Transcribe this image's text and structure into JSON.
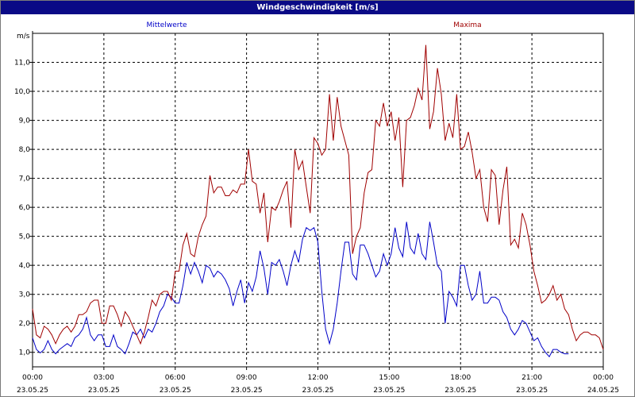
{
  "window": {
    "title": "Windgeschwindigkeit [m/s]"
  },
  "colors": {
    "background": "#ffffff",
    "titlebar": "#0a0a86",
    "mean": "#0000c8",
    "max": "#a00000",
    "grid": "#000000"
  },
  "chart_data": {
    "type": "line",
    "title": "Windgeschwindigkeit [m/s]",
    "ylabel": "m/s",
    "ylim": [
      0.5,
      12.0
    ],
    "grid": true,
    "y_ticks": [
      "1,0",
      "2,0",
      "3,0",
      "4,0",
      "5,0",
      "6,0",
      "7,0",
      "8,0",
      "9,0",
      "10,0",
      "11,0"
    ],
    "x_ticks": [
      {
        "time": "00:00",
        "date": "23.05.25"
      },
      {
        "time": "03:00",
        "date": "23.05.25"
      },
      {
        "time": "06:00",
        "date": "23.05.25"
      },
      {
        "time": "09:00",
        "date": "23.05.25"
      },
      {
        "time": "12:00",
        "date": "23.05.25"
      },
      {
        "time": "15:00",
        "date": "23.05.25"
      },
      {
        "time": "18:00",
        "date": "23.05.25"
      },
      {
        "time": "21:00",
        "date": "23.05.25"
      },
      {
        "time": "00:00",
        "date": "24.05.25"
      }
    ],
    "series": [
      {
        "name": "Mittelwerte",
        "color": "#0000c8",
        "points": [
          [
            0.0,
            1.5
          ],
          [
            0.2,
            1.1
          ],
          [
            0.4,
            0.98
          ],
          [
            0.6,
            1.1
          ],
          [
            0.8,
            1.4
          ],
          [
            1.0,
            1.1
          ],
          [
            1.2,
            0.95
          ],
          [
            1.4,
            1.1
          ],
          [
            1.6,
            1.2
          ],
          [
            1.8,
            1.3
          ],
          [
            2.0,
            1.2
          ],
          [
            2.2,
            1.5
          ],
          [
            2.4,
            1.6
          ],
          [
            2.6,
            1.8
          ],
          [
            2.8,
            2.2
          ],
          [
            3.0,
            1.6
          ],
          [
            3.2,
            1.4
          ],
          [
            3.4,
            1.6
          ],
          [
            3.6,
            1.6
          ],
          [
            3.8,
            1.2
          ],
          [
            4.0,
            1.2
          ],
          [
            4.2,
            1.6
          ],
          [
            4.4,
            1.2
          ],
          [
            4.6,
            1.1
          ],
          [
            4.8,
            0.95
          ],
          [
            5.0,
            1.3
          ],
          [
            5.2,
            1.7
          ],
          [
            5.4,
            1.6
          ],
          [
            5.6,
            1.8
          ],
          [
            5.8,
            1.5
          ],
          [
            6.0,
            1.8
          ],
          [
            6.2,
            1.7
          ],
          [
            6.4,
            2.0
          ],
          [
            6.6,
            2.4
          ],
          [
            6.8,
            2.6
          ],
          [
            7.0,
            3.0
          ],
          [
            7.2,
            2.9
          ],
          [
            7.4,
            2.7
          ],
          [
            7.6,
            2.7
          ],
          [
            7.8,
            3.3
          ],
          [
            8.0,
            4.1
          ],
          [
            8.2,
            3.7
          ],
          [
            8.4,
            4.1
          ],
          [
            8.6,
            3.8
          ],
          [
            8.8,
            3.4
          ],
          [
            9.0,
            4.0
          ],
          [
            9.2,
            3.9
          ],
          [
            9.4,
            3.6
          ],
          [
            9.6,
            3.8
          ],
          [
            9.8,
            3.7
          ],
          [
            10.0,
            3.5
          ],
          [
            10.2,
            3.2
          ],
          [
            10.4,
            2.6
          ],
          [
            10.6,
            3.1
          ],
          [
            10.8,
            3.5
          ],
          [
            11.0,
            2.7
          ],
          [
            11.2,
            3.4
          ],
          [
            11.4,
            3.1
          ],
          [
            11.6,
            3.6
          ],
          [
            11.8,
            4.5
          ],
          [
            12.0,
            3.9
          ],
          [
            12.2,
            3.0
          ],
          [
            12.4,
            4.1
          ],
          [
            12.6,
            4.0
          ],
          [
            12.8,
            4.2
          ],
          [
            13.0,
            3.8
          ],
          [
            13.2,
            3.3
          ],
          [
            13.4,
            4.0
          ],
          [
            13.6,
            4.5
          ],
          [
            13.8,
            4.1
          ],
          [
            14.0,
            4.9
          ],
          [
            14.2,
            5.3
          ],
          [
            14.4,
            5.2
          ],
          [
            14.6,
            5.3
          ],
          [
            14.8,
            4.8
          ],
          [
            15.0,
            3.1
          ],
          [
            15.2,
            1.8
          ],
          [
            15.4,
            1.3
          ],
          [
            15.6,
            1.8
          ],
          [
            15.8,
            2.7
          ],
          [
            16.0,
            3.8
          ],
          [
            16.2,
            4.8
          ],
          [
            16.4,
            4.8
          ],
          [
            16.6,
            3.7
          ],
          [
            16.8,
            3.5
          ],
          [
            17.0,
            4.7
          ],
          [
            17.2,
            4.7
          ],
          [
            17.4,
            4.4
          ],
          [
            17.6,
            4.0
          ],
          [
            17.8,
            3.6
          ],
          [
            18.0,
            3.8
          ],
          [
            18.2,
            4.4
          ],
          [
            18.4,
            4.0
          ],
          [
            18.6,
            4.4
          ],
          [
            18.8,
            5.3
          ],
          [
            19.0,
            4.6
          ],
          [
            19.2,
            4.3
          ],
          [
            19.4,
            5.5
          ],
          [
            19.6,
            4.6
          ],
          [
            19.8,
            4.4
          ],
          [
            20.0,
            5.1
          ],
          [
            20.2,
            4.4
          ],
          [
            20.4,
            4.2
          ],
          [
            20.6,
            5.5
          ],
          [
            20.8,
            4.8
          ],
          [
            21.0,
            4.0
          ],
          [
            21.2,
            3.8
          ],
          [
            21.4,
            2.0
          ],
          [
            21.6,
            3.1
          ],
          [
            21.8,
            2.9
          ],
          [
            22.0,
            2.6
          ],
          [
            22.2,
            4.0
          ],
          [
            22.4,
            4.0
          ],
          [
            22.6,
            3.3
          ],
          [
            22.8,
            2.8
          ],
          [
            23.0,
            3.0
          ],
          [
            23.2,
            3.8
          ],
          [
            23.4,
            2.7
          ],
          [
            23.6,
            2.7
          ],
          [
            23.8,
            2.9
          ],
          [
            24.0,
            2.9
          ],
          [
            24.2,
            2.8
          ],
          [
            24.4,
            2.4
          ],
          [
            24.6,
            2.2
          ],
          [
            24.8,
            1.8
          ],
          [
            25.0,
            1.6
          ],
          [
            25.2,
            1.8
          ],
          [
            25.4,
            2.1
          ],
          [
            25.6,
            2.0
          ],
          [
            25.8,
            1.7
          ],
          [
            26.0,
            1.4
          ],
          [
            26.2,
            1.5
          ],
          [
            26.4,
            1.2
          ],
          [
            26.6,
            1.0
          ],
          [
            26.8,
            0.85
          ],
          [
            27.0,
            1.1
          ],
          [
            27.2,
            1.1
          ],
          [
            27.4,
            1.0
          ],
          [
            27.6,
            0.95
          ],
          [
            27.8,
            0.95
          ]
        ]
      },
      {
        "name": "Maxima",
        "color": "#a00000",
        "points": [
          [
            0.0,
            2.5
          ],
          [
            0.2,
            1.6
          ],
          [
            0.4,
            1.5
          ],
          [
            0.6,
            1.9
          ],
          [
            0.8,
            1.8
          ],
          [
            1.0,
            1.6
          ],
          [
            1.2,
            1.3
          ],
          [
            1.4,
            1.6
          ],
          [
            1.6,
            1.8
          ],
          [
            1.8,
            1.9
          ],
          [
            2.0,
            1.7
          ],
          [
            2.2,
            1.9
          ],
          [
            2.4,
            2.3
          ],
          [
            2.6,
            2.3
          ],
          [
            2.8,
            2.4
          ],
          [
            3.0,
            2.7
          ],
          [
            3.2,
            2.8
          ],
          [
            3.4,
            2.8
          ],
          [
            3.6,
            2.0
          ],
          [
            3.8,
            2.0
          ],
          [
            4.0,
            2.6
          ],
          [
            4.2,
            2.6
          ],
          [
            4.4,
            2.3
          ],
          [
            4.6,
            1.9
          ],
          [
            4.8,
            2.4
          ],
          [
            5.0,
            2.2
          ],
          [
            5.2,
            1.9
          ],
          [
            5.4,
            1.6
          ],
          [
            5.6,
            1.3
          ],
          [
            5.8,
            1.7
          ],
          [
            6.0,
            2.2
          ],
          [
            6.2,
            2.8
          ],
          [
            6.4,
            2.6
          ],
          [
            6.6,
            3.0
          ],
          [
            6.8,
            3.1
          ],
          [
            7.0,
            3.1
          ],
          [
            7.2,
            2.8
          ],
          [
            7.4,
            3.8
          ],
          [
            7.6,
            3.8
          ],
          [
            7.8,
            4.7
          ],
          [
            8.0,
            5.1
          ],
          [
            8.2,
            4.4
          ],
          [
            8.4,
            4.3
          ],
          [
            8.6,
            5.0
          ],
          [
            8.8,
            5.4
          ],
          [
            9.0,
            5.7
          ],
          [
            9.2,
            7.1
          ],
          [
            9.4,
            6.5
          ],
          [
            9.6,
            6.7
          ],
          [
            9.8,
            6.7
          ],
          [
            10.0,
            6.4
          ],
          [
            10.2,
            6.4
          ],
          [
            10.4,
            6.6
          ],
          [
            10.6,
            6.5
          ],
          [
            10.8,
            6.8
          ],
          [
            11.0,
            6.8
          ],
          [
            11.2,
            8.0
          ],
          [
            11.4,
            6.9
          ],
          [
            11.6,
            6.8
          ],
          [
            11.8,
            5.8
          ],
          [
            12.0,
            6.5
          ],
          [
            12.2,
            4.8
          ],
          [
            12.4,
            6.0
          ],
          [
            12.6,
            5.9
          ],
          [
            12.8,
            6.2
          ],
          [
            13.0,
            6.6
          ],
          [
            13.2,
            6.9
          ],
          [
            13.4,
            5.3
          ],
          [
            13.6,
            8.0
          ],
          [
            13.8,
            7.3
          ],
          [
            14.0,
            7.6
          ],
          [
            14.2,
            6.7
          ],
          [
            14.4,
            5.8
          ],
          [
            14.6,
            8.4
          ],
          [
            14.8,
            8.2
          ],
          [
            15.0,
            7.8
          ],
          [
            15.2,
            8.0
          ],
          [
            15.4,
            9.9
          ],
          [
            15.6,
            8.3
          ],
          [
            15.8,
            9.8
          ],
          [
            16.0,
            8.8
          ],
          [
            16.2,
            8.3
          ],
          [
            16.4,
            7.8
          ],
          [
            16.6,
            4.4
          ],
          [
            16.8,
            5.0
          ],
          [
            17.0,
            5.3
          ],
          [
            17.2,
            6.5
          ],
          [
            17.4,
            7.2
          ],
          [
            17.6,
            7.3
          ],
          [
            17.8,
            9.0
          ],
          [
            18.0,
            8.8
          ],
          [
            18.2,
            9.6
          ],
          [
            18.4,
            8.8
          ],
          [
            18.6,
            9.3
          ],
          [
            18.8,
            8.3
          ],
          [
            19.0,
            9.1
          ],
          [
            19.2,
            6.7
          ],
          [
            19.4,
            9.0
          ],
          [
            19.6,
            9.1
          ],
          [
            19.8,
            9.5
          ],
          [
            20.0,
            10.1
          ],
          [
            20.2,
            9.7
          ],
          [
            20.4,
            11.6
          ],
          [
            20.6,
            8.7
          ],
          [
            20.8,
            9.3
          ],
          [
            21.0,
            10.8
          ],
          [
            21.2,
            9.9
          ],
          [
            21.4,
            8.3
          ],
          [
            21.6,
            8.9
          ],
          [
            21.8,
            8.4
          ],
          [
            22.0,
            9.9
          ],
          [
            22.2,
            8.0
          ],
          [
            22.4,
            8.1
          ],
          [
            22.6,
            8.6
          ],
          [
            22.8,
            7.9
          ],
          [
            23.0,
            7.0
          ],
          [
            23.2,
            7.3
          ],
          [
            23.4,
            6.0
          ],
          [
            23.6,
            5.5
          ],
          [
            23.8,
            7.3
          ],
          [
            24.0,
            7.1
          ],
          [
            24.2,
            5.4
          ],
          [
            24.4,
            6.6
          ],
          [
            24.6,
            7.4
          ],
          [
            24.8,
            4.7
          ],
          [
            25.0,
            4.9
          ],
          [
            25.2,
            4.6
          ],
          [
            25.4,
            5.8
          ],
          [
            25.6,
            5.4
          ],
          [
            25.8,
            4.7
          ],
          [
            26.0,
            3.8
          ],
          [
            26.2,
            3.3
          ],
          [
            26.4,
            2.7
          ],
          [
            26.6,
            2.8
          ],
          [
            26.8,
            3.0
          ],
          [
            27.0,
            3.3
          ],
          [
            27.2,
            2.8
          ],
          [
            27.4,
            3.0
          ],
          [
            27.6,
            2.5
          ],
          [
            27.8,
            2.3
          ],
          [
            28.0,
            1.8
          ],
          [
            28.2,
            1.4
          ],
          [
            28.4,
            1.6
          ],
          [
            28.6,
            1.7
          ],
          [
            28.8,
            1.7
          ],
          [
            29.0,
            1.6
          ],
          [
            29.2,
            1.6
          ],
          [
            29.4,
            1.5
          ],
          [
            29.6,
            1.1
          ]
        ]
      }
    ]
  }
}
